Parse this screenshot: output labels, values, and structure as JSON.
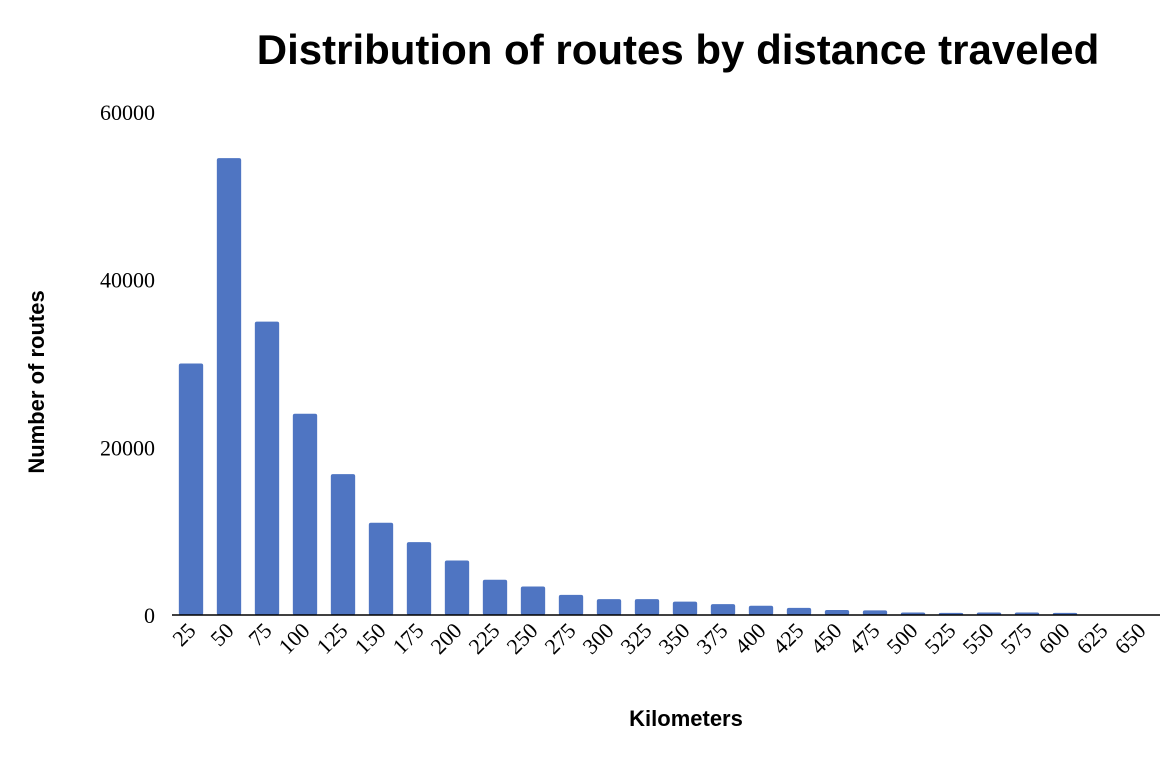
{
  "chart_data": {
    "type": "bar",
    "title": "Distribution of routes by distance traveled",
    "xlabel": "Kilometers",
    "ylabel": "Number of routes",
    "categories": [
      "25",
      "50",
      "75",
      "100",
      "125",
      "150",
      "175",
      "200",
      "225",
      "250",
      "275",
      "300",
      "325",
      "350",
      "375",
      "400",
      "425",
      "450",
      "475",
      "500",
      "525",
      "550",
      "575",
      "600",
      "625",
      "650"
    ],
    "values": [
      30000,
      54500,
      35000,
      24000,
      16800,
      11000,
      8700,
      6500,
      4200,
      3400,
      2400,
      1900,
      1900,
      1600,
      1300,
      1100,
      850,
      600,
      550,
      300,
      250,
      300,
      300,
      250,
      0,
      0
    ],
    "yticks": [
      "0",
      "20000",
      "40000",
      "60000"
    ],
    "ylim": [
      0,
      60000
    ],
    "grid": false,
    "legend": "none",
    "bar_color": "#4f75c2"
  }
}
